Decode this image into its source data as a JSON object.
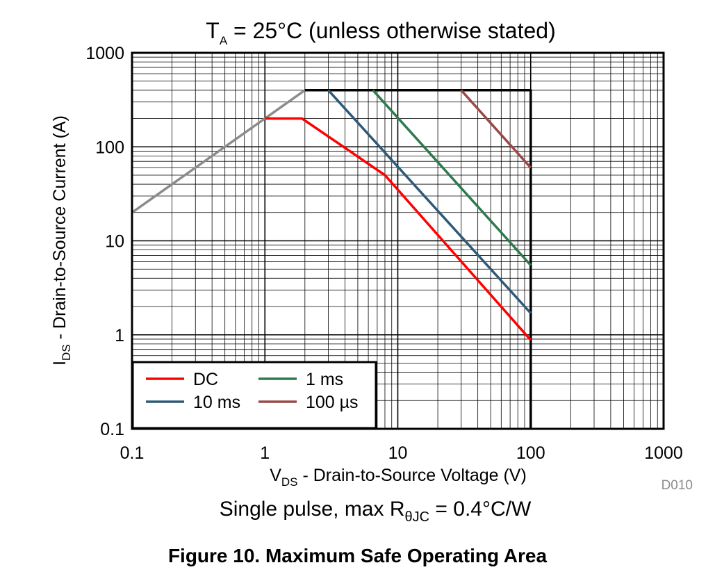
{
  "chart_data": {
    "type": "line",
    "title_parts": {
      "main": "T",
      "sub": "A",
      "rest": " = 25°C (unless otherwise stated)"
    },
    "ylabel_parts": {
      "main": "I",
      "sub": "DS",
      "rest": " - Drain-to-Source Current (A)"
    },
    "xlabel_parts": {
      "main": "V",
      "sub": "DS",
      "rest": " - Drain-to-Source Voltage (V)"
    },
    "x_scale": "log",
    "y_scale": "log",
    "xlim": [
      0.1,
      1000
    ],
    "ylim": [
      0.1,
      1000
    ],
    "x_ticks": [
      0.1,
      1,
      10,
      100,
      1000
    ],
    "x_tick_labels": [
      "0.1",
      "1",
      "10",
      "100",
      "1000"
    ],
    "y_ticks": [
      0.1,
      1,
      10,
      100,
      1000
    ],
    "y_tick_labels": [
      "0.1",
      "1",
      "10",
      "100",
      "1000"
    ],
    "grid": true,
    "legend_position": "bottom-left",
    "series": [
      {
        "name": "RDS(on) limit",
        "color": "#8c8c8c",
        "in_legend": false,
        "points": [
          [
            0.1,
            20
          ],
          [
            2,
            400
          ]
        ]
      },
      {
        "name": "Package limit",
        "color": "#000000",
        "in_legend": false,
        "points": [
          [
            2,
            400
          ],
          [
            100,
            400
          ],
          [
            100,
            0.1
          ]
        ]
      },
      {
        "name": "DC",
        "color": "#ff0000",
        "in_legend": true,
        "points": [
          [
            1,
            200
          ],
          [
            1.9,
            200
          ],
          [
            8,
            50
          ],
          [
            100,
            0.88
          ]
        ]
      },
      {
        "name": "10 ms",
        "color": "#2e5a78",
        "in_legend": true,
        "points": [
          [
            3,
            400
          ],
          [
            100,
            1.7
          ]
        ]
      },
      {
        "name": "1 ms",
        "color": "#2e7a4f",
        "in_legend": true,
        "points": [
          [
            6.5,
            400
          ],
          [
            100,
            5.5
          ]
        ]
      },
      {
        "name": "100 µs",
        "color": "#9a4848",
        "in_legend": true,
        "points": [
          [
            30,
            400
          ],
          [
            100,
            60
          ]
        ]
      }
    ]
  },
  "caption_parts": {
    "pre": "Single pulse, max R",
    "sub": "θJC",
    "post": " = 0.4°C/W"
  },
  "figure_id": "D010",
  "figure_title": "Figure 10. Maximum Safe Operating Area"
}
